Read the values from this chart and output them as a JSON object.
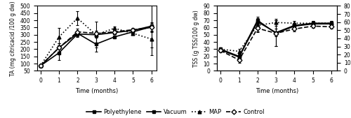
{
  "time": [
    0,
    1,
    2,
    3,
    4,
    5,
    6
  ],
  "ta": {
    "polyethylene": [
      85,
      210,
      310,
      235,
      285,
      320,
      355
    ],
    "vacuum": [
      85,
      175,
      305,
      300,
      315,
      330,
      360
    ],
    "map": [
      85,
      285,
      415,
      300,
      345,
      310,
      270
    ],
    "control": [
      85,
      210,
      320,
      310,
      320,
      335,
      350
    ]
  },
  "ta_err": {
    "polyethylene": [
      5,
      30,
      20,
      50,
      10,
      10,
      30
    ],
    "vacuum": [
      5,
      50,
      20,
      20,
      10,
      10,
      200
    ],
    "map": [
      5,
      60,
      50,
      90,
      10,
      10,
      60
    ],
    "control": [
      5,
      30,
      20,
      20,
      10,
      10,
      30
    ]
  },
  "tss": {
    "polyethylene": [
      30,
      20,
      70,
      52,
      62,
      65,
      65
    ],
    "vacuum": [
      29,
      19,
      68,
      53,
      63,
      66,
      66
    ],
    "map": [
      30,
      27,
      63,
      67,
      66,
      66,
      66
    ],
    "control": [
      28,
      15,
      59,
      52,
      58,
      62,
      61
    ]
  },
  "tss_err": {
    "polyethylene": [
      2,
      3,
      5,
      18,
      3,
      3,
      3
    ],
    "vacuum": [
      2,
      4,
      5,
      5,
      3,
      3,
      3
    ],
    "map": [
      2,
      3,
      8,
      5,
      3,
      3,
      3
    ],
    "control": [
      2,
      4,
      5,
      18,
      3,
      3,
      3
    ]
  },
  "ta_ylim": [
    50,
    500
  ],
  "ta_yticks": [
    50,
    100,
    150,
    200,
    250,
    300,
    350,
    400,
    450,
    500
  ],
  "tss_ylim": [
    0,
    90
  ],
  "tss_yticks": [
    0,
    10,
    20,
    30,
    40,
    50,
    60,
    70,
    80,
    90
  ],
  "tss_y2lim": [
    0,
    80
  ],
  "tss_y2ticks": [
    0,
    10,
    20,
    30,
    40,
    50,
    60,
    70,
    80
  ],
  "xlim": [
    -0.2,
    6.3
  ],
  "xticks": [
    0,
    1,
    2,
    3,
    4,
    5,
    6
  ],
  "xlabel": "Time (months)",
  "ta_ylabel": "TA (mg citricacid /100 g dw)",
  "tss_ylabel": "TSS (g TSS/100 g dw)",
  "legend_labels": [
    "Polyethylene",
    "Vacuum",
    "MAP",
    "Control"
  ],
  "line_styles": [
    "-",
    "-",
    ":",
    "--"
  ],
  "markers": [
    "s",
    "s",
    "^",
    "D"
  ],
  "marker_fills": [
    "black",
    "black",
    "black",
    "white"
  ],
  "linewidths": [
    1.2,
    1.2,
    1.2,
    1.2
  ],
  "markersize": 3.5
}
